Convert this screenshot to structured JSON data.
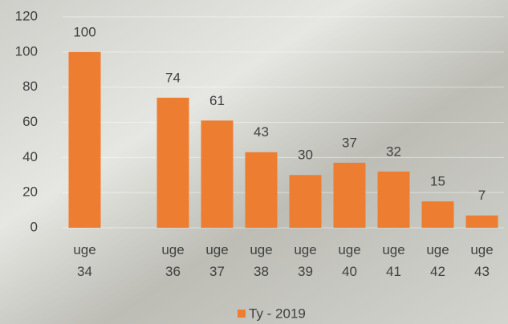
{
  "chart_data": {
    "type": "bar",
    "categories": [
      "uge 34",
      null,
      "uge 36",
      "uge 37",
      "uge 38",
      "uge 39",
      "uge 40",
      "uge 41",
      "uge 42",
      "uge 43"
    ],
    "series": [
      {
        "name": "Ty - 2019",
        "color": "#ed7d31",
        "values": [
          100,
          null,
          74,
          61,
          43,
          30,
          37,
          32,
          15,
          7
        ]
      }
    ],
    "ylim": [
      0,
      120
    ],
    "yticks": [
      0,
      20,
      40,
      60,
      80,
      100,
      120
    ],
    "grid": true,
    "legend": "bottom"
  }
}
